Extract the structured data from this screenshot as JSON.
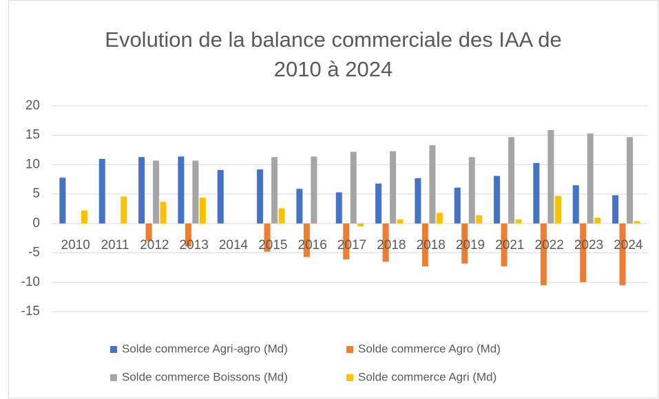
{
  "chart_data": {
    "type": "bar",
    "title": [
      "Evolution de la balance commerciale des IAA de",
      "2010 à 2024"
    ],
    "categories": [
      "2010",
      "2011",
      "2012",
      "2013",
      "2014",
      "2015",
      "2016",
      "2017",
      "2018",
      "2018",
      "2019",
      "2021",
      "2022",
      "2023",
      "2024"
    ],
    "series": [
      {
        "name": "Solde commerce Agri-agro (Md)",
        "color": "#4472c4",
        "values": [
          7.8,
          11,
          11.3,
          11.4,
          9.1,
          9.2,
          5.9,
          5.3,
          6.8,
          7.7,
          6.1,
          8.1,
          10.3,
          6.5,
          4.8
        ]
      },
      {
        "name": "Solde commerce Agro (Md)",
        "color": "#ed7d31",
        "values": [
          null,
          null,
          -3,
          -3.9,
          null,
          -4.8,
          -5.7,
          -6.1,
          -6.5,
          -7.3,
          -6.8,
          -7.3,
          -10.5,
          -10,
          -10.5
        ]
      },
      {
        "name": "Solde commerce Boissons (Md)",
        "color": "#a5a5a5",
        "values": [
          null,
          null,
          10.7,
          10.7,
          null,
          11.3,
          11.4,
          12.2,
          12.3,
          13.3,
          11.3,
          14.7,
          15.9,
          15.3,
          14.7
        ]
      },
      {
        "name": "Solde commerce Agri (Md)",
        "color": "#ffc000",
        "values": [
          2.2,
          4.6,
          3.7,
          4.4,
          null,
          2.6,
          null,
          -0.5,
          0.7,
          1.8,
          1.4,
          0.7,
          4.7,
          1.0,
          0.4
        ]
      }
    ],
    "ylim": [
      -15,
      20
    ],
    "yticks": [
      -15,
      -10,
      -5,
      0,
      5,
      10,
      15,
      20
    ],
    "grid": true
  }
}
